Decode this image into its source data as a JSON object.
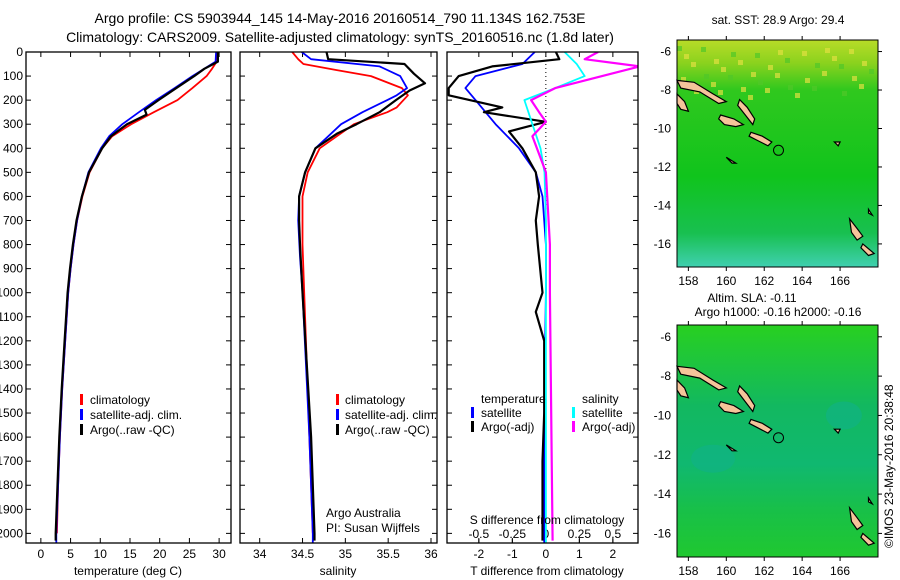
{
  "title": {
    "line1": "Argo profile: CS 5903944_145 14-May-2016 20160514_790 11.134S 162.753E",
    "line2": "Climatology: CARS2009. Satellite-adjusted climatology: synTS_20160516.nc (1.8d later)"
  },
  "credit": {
    "line1": "Argo Australia",
    "line2": "PI: Susan Wijffels"
  },
  "timestamp": "©IMOS 23-May-2016 20:38:48",
  "colors": {
    "red": "#ff0000",
    "blue": "#0000ff",
    "black": "#000000",
    "cyan": "#00ffff",
    "magenta": "#ff00ff"
  },
  "chart_data": [
    {
      "type": "line",
      "id": "temperature",
      "xlabel": "temperature (deg C)",
      "xlim": [
        -2.5,
        32
      ],
      "xticks": [
        0,
        5,
        10,
        15,
        20,
        25,
        30
      ],
      "ylabel": "depth",
      "ylim": [
        0,
        2040
      ],
      "yticks": [
        0,
        100,
        200,
        300,
        400,
        500,
        600,
        700,
        800,
        900,
        1000,
        1100,
        1200,
        1300,
        1400,
        1500,
        1600,
        1700,
        1800,
        1900,
        2000
      ],
      "legend": [
        "climatology",
        "satellite-adj. clim.",
        "Argo(..raw -QC)"
      ],
      "series": [
        {
          "name": "climatology",
          "color": "red",
          "points": [
            [
              29.6,
              0
            ],
            [
              29.6,
              40
            ],
            [
              28.8,
              70
            ],
            [
              27.9,
              100
            ],
            [
              25.5,
              150
            ],
            [
              23,
              200
            ],
            [
              19,
              250
            ],
            [
              15.2,
              300
            ],
            [
              12,
              350
            ],
            [
              10.3,
              400
            ],
            [
              8.2,
              500
            ],
            [
              7,
              600
            ],
            [
              6.1,
              700
            ],
            [
              5.5,
              800
            ],
            [
              5,
              900
            ],
            [
              4.6,
              1000
            ],
            [
              4.1,
              1200
            ],
            [
              3.6,
              1400
            ],
            [
              3.2,
              1600
            ],
            [
              2.9,
              1800
            ],
            [
              2.7,
              2000
            ]
          ]
        },
        {
          "name": "satellite-adj. clim.",
          "color": "blue",
          "points": [
            [
              29.5,
              0
            ],
            [
              29.4,
              40
            ],
            [
              27.5,
              70
            ],
            [
              25.5,
              100
            ],
            [
              22.5,
              150
            ],
            [
              19.4,
              200
            ],
            [
              16.5,
              250
            ],
            [
              13.7,
              300
            ],
            [
              11.5,
              350
            ],
            [
              10.1,
              400
            ],
            [
              8,
              500
            ],
            [
              6.9,
              600
            ],
            [
              6.1,
              700
            ],
            [
              5.5,
              800
            ],
            [
              5,
              900
            ],
            [
              4.6,
              1000
            ],
            [
              4.1,
              1200
            ],
            [
              3.6,
              1400
            ],
            [
              3.2,
              1600
            ],
            [
              2.9,
              1800
            ],
            [
              2.6,
              2000
            ],
            [
              2.6,
              2040
            ]
          ]
        },
        {
          "name": "Argo(..raw -QC)",
          "color": "black",
          "points": [
            [
              29.8,
              0
            ],
            [
              29.8,
              40
            ],
            [
              27.5,
              70
            ],
            [
              25.8,
              100
            ],
            [
              22.8,
              150
            ],
            [
              19.8,
              200
            ],
            [
              17.5,
              240
            ],
            [
              17.8,
              260
            ],
            [
              14.5,
              300
            ],
            [
              11.8,
              350
            ],
            [
              10.3,
              400
            ],
            [
              8.1,
              500
            ],
            [
              6.9,
              600
            ],
            [
              6.0,
              700
            ],
            [
              5.4,
              800
            ],
            [
              4.9,
              900
            ],
            [
              4.5,
              1000
            ],
            [
              4.0,
              1200
            ],
            [
              3.5,
              1400
            ],
            [
              3.1,
              1600
            ],
            [
              2.8,
              1800
            ],
            [
              2.5,
              2000
            ],
            [
              2.5,
              2030
            ]
          ]
        }
      ]
    },
    {
      "type": "line",
      "id": "salinity",
      "xlabel": "salinity",
      "xlim": [
        33.77,
        36.07
      ],
      "xticks": [
        34,
        34.5,
        35,
        35.5,
        36
      ],
      "ylim": [
        0,
        2040
      ],
      "legend": [
        "climatology",
        "satellite-adj. clim.",
        "Argo(..raw -QC)"
      ],
      "series": [
        {
          "name": "climatology",
          "color": "red",
          "points": [
            [
              34.38,
              0
            ],
            [
              34.45,
              30
            ],
            [
              34.51,
              50
            ],
            [
              34.9,
              75
            ],
            [
              35.3,
              100
            ],
            [
              35.66,
              150
            ],
            [
              35.73,
              180
            ],
            [
              35.6,
              230
            ],
            [
              35.49,
              250
            ],
            [
              35.1,
              300
            ],
            [
              34.7,
              400
            ],
            [
              34.56,
              500
            ],
            [
              34.5,
              600
            ],
            [
              34.5,
              800
            ],
            [
              34.52,
              1000
            ],
            [
              34.55,
              1300
            ],
            [
              34.58,
              1600
            ],
            [
              34.62,
              2000
            ]
          ]
        },
        {
          "name": "satellite-adj. clim.",
          "color": "blue",
          "points": [
            [
              34.49,
              0
            ],
            [
              34.6,
              30
            ],
            [
              35.4,
              60
            ],
            [
              35.64,
              100
            ],
            [
              35.72,
              150
            ],
            [
              35.6,
              180
            ],
            [
              35.49,
              200
            ],
            [
              35.2,
              250
            ],
            [
              34.95,
              300
            ],
            [
              34.65,
              400
            ],
            [
              34.53,
              500
            ],
            [
              34.46,
              600
            ],
            [
              34.45,
              700
            ],
            [
              34.47,
              850
            ],
            [
              34.5,
              1000
            ],
            [
              34.54,
              1300
            ],
            [
              34.58,
              1600
            ],
            [
              34.62,
              2000
            ],
            [
              34.62,
              2040
            ]
          ]
        },
        {
          "name": "Argo(..raw -QC)",
          "color": "black",
          "points": [
            [
              34.78,
              0
            ],
            [
              34.8,
              30
            ],
            [
              35.69,
              50
            ],
            [
              35.8,
              90
            ],
            [
              35.93,
              130
            ],
            [
              35.75,
              160
            ],
            [
              35.59,
              200
            ],
            [
              35.4,
              250
            ],
            [
              35.13,
              300
            ],
            [
              34.9,
              340
            ],
            [
              34.65,
              400
            ],
            [
              34.53,
              500
            ],
            [
              34.46,
              600
            ],
            [
              34.46,
              700
            ],
            [
              34.47,
              800
            ],
            [
              34.5,
              1000
            ],
            [
              34.55,
              1300
            ],
            [
              34.6,
              1600
            ],
            [
              34.64,
              2000
            ],
            [
              34.64,
              2030
            ]
          ]
        }
      ]
    },
    {
      "type": "line",
      "id": "difference",
      "xlabel": "T difference from climatology",
      "xlabel_top": "S difference from climatology",
      "xlim": [
        -2.95,
        2.75
      ],
      "xticks": [
        -2,
        -1,
        0,
        1,
        2
      ],
      "xticks_s": [
        -0.5,
        -0.25,
        0,
        0.25,
        0.5
      ],
      "xtick_labels_s": [
        "-0.5",
        "-0.25",
        "0",
        "0.25",
        "0.5"
      ],
      "ylim": [
        0,
        2040
      ],
      "legend_headers": [
        "temperature",
        "salinity"
      ],
      "legend": [
        "satellite",
        "Argo(-adj)",
        "satellite",
        "Argo(-adj)"
      ],
      "series": [
        {
          "name": "temperature satellite",
          "color": "blue",
          "units": "T",
          "points": [
            [
              -0.33,
              0
            ],
            [
              -0.7,
              50
            ],
            [
              -2.1,
              100
            ],
            [
              -2.4,
              150
            ],
            [
              -2.1,
              200
            ],
            [
              -1.5,
              300
            ],
            [
              -0.8,
              400
            ],
            [
              -0.3,
              500
            ],
            [
              -0.1,
              600
            ],
            [
              0,
              800
            ],
            [
              0,
              1000
            ],
            [
              -0.05,
              1500
            ],
            [
              -0.05,
              2000
            ],
            [
              -0.05,
              2040
            ]
          ]
        },
        {
          "name": "temperature Argo(-adj)",
          "color": "black",
          "units": "T",
          "points": [
            [
              0.3,
              0
            ],
            [
              0.4,
              30
            ],
            [
              -1.6,
              60
            ],
            [
              -2.6,
              100
            ],
            [
              -2.9,
              150
            ],
            [
              -2.9,
              180
            ],
            [
              -1.3,
              230
            ],
            [
              -1.85,
              250
            ],
            [
              0,
              290
            ],
            [
              -1.1,
              330
            ],
            [
              -0.7,
              400
            ],
            [
              -0.3,
              500
            ],
            [
              -0.2,
              600
            ],
            [
              -0.3,
              700
            ],
            [
              -0.24,
              800
            ],
            [
              -0.1,
              1000
            ],
            [
              -0.3,
              1080
            ],
            [
              -0.05,
              1200
            ],
            [
              -0.05,
              1500
            ],
            [
              -0.1,
              1700
            ],
            [
              -0.1,
              2030
            ]
          ]
        },
        {
          "name": "salinity satellite",
          "color": "cyan",
          "units": "S",
          "points": [
            [
              0.14,
              0
            ],
            [
              0.23,
              50
            ],
            [
              0.29,
              100
            ],
            [
              0.07,
              150
            ],
            [
              -0.16,
              200
            ],
            [
              -0.1,
              300
            ],
            [
              -0.04,
              400
            ],
            [
              -0.01,
              500
            ],
            [
              0,
              700
            ],
            [
              0,
              1000
            ],
            [
              0,
              1500
            ],
            [
              0,
              2040
            ]
          ]
        },
        {
          "name": "salinity Argo(-adj)",
          "color": "magenta",
          "units": "S",
          "points": [
            [
              0.39,
              0
            ],
            [
              0.29,
              30
            ],
            [
              0.7,
              60
            ],
            [
              0.42,
              100
            ],
            [
              0.07,
              150
            ],
            [
              -0.11,
              200
            ],
            [
              -0.05,
              250
            ],
            [
              0,
              290
            ],
            [
              -0.1,
              350
            ],
            [
              0,
              500
            ],
            [
              0.03,
              800
            ],
            [
              0.03,
              1000
            ],
            [
              0.04,
              1500
            ],
            [
              0.05,
              2030
            ]
          ]
        }
      ]
    }
  ],
  "maps": [
    {
      "id": "sst",
      "title": "sat. SST: 28.9 Argo: 29.4",
      "lon_ticks": [
        158,
        160,
        162,
        164,
        166
      ],
      "lat_ticks": [
        -6,
        -8,
        -10,
        -12,
        -14,
        -16
      ],
      "lon_range": [
        157.4,
        168
      ],
      "lat_range": [
        -5.4,
        -17.2
      ],
      "argo_position": [
        162.753,
        -11.134
      ]
    },
    {
      "id": "sla",
      "title": "Altim. SLA: -0.11",
      "subtitle": "Argo h1000: -0.16 h2000: -0.16",
      "lon_ticks": [
        158,
        160,
        162,
        164,
        166
      ],
      "lat_ticks": [
        -6,
        -8,
        -10,
        -12,
        -14,
        -16
      ],
      "lon_range": [
        157.4,
        168
      ],
      "lat_range": [
        -5.4,
        -17.2
      ],
      "argo_position": [
        162.753,
        -11.134
      ]
    }
  ]
}
